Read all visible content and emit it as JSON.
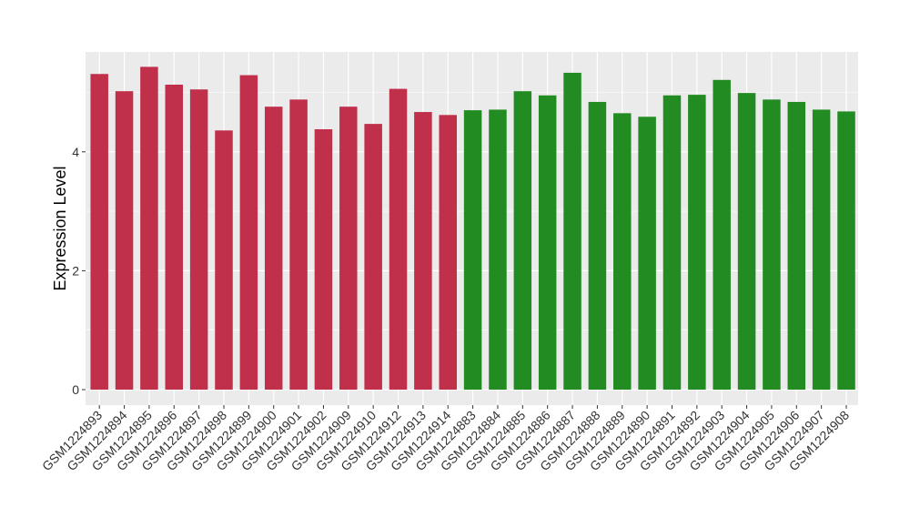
{
  "chart_data": {
    "type": "bar",
    "title": "",
    "xlabel": "",
    "ylabel": "Expression Level",
    "ylim": [
      0,
      5.6
    ],
    "yticks": [
      0,
      2,
      4
    ],
    "grid": true,
    "legend": "none",
    "categories": [
      "GSM1224893",
      "GSM1224894",
      "GSM1224895",
      "GSM1224896",
      "GSM1224897",
      "GSM1224898",
      "GSM1224899",
      "GSM1224900",
      "GSM1224901",
      "GSM1224902",
      "GSM1224909",
      "GSM1224910",
      "GSM1224912",
      "GSM1224913",
      "GSM1224914",
      "GSM1224883",
      "GSM1224884",
      "GSM1224885",
      "GSM1224886",
      "GSM1224887",
      "GSM1224888",
      "GSM1224889",
      "GSM1224890",
      "GSM1224891",
      "GSM1224892",
      "GSM1224903",
      "GSM1224904",
      "GSM1224905",
      "GSM1224906",
      "GSM1224907",
      "GSM1224908"
    ],
    "values": [
      5.31,
      5.02,
      5.43,
      5.13,
      5.05,
      4.36,
      5.29,
      4.76,
      4.88,
      4.38,
      4.76,
      4.47,
      5.06,
      4.67,
      4.62,
      4.7,
      4.71,
      5.02,
      4.95,
      5.33,
      4.84,
      4.65,
      4.59,
      4.95,
      4.96,
      5.21,
      4.99,
      4.88,
      4.84,
      4.71,
      4.68
    ],
    "groups": [
      0,
      0,
      0,
      0,
      0,
      0,
      0,
      0,
      0,
      0,
      0,
      0,
      0,
      0,
      0,
      1,
      1,
      1,
      1,
      1,
      1,
      1,
      1,
      1,
      1,
      1,
      1,
      1,
      1,
      1,
      1
    ],
    "colors": [
      "#C0304A",
      "#228B22"
    ],
    "panel_background": "#EBEBEB",
    "grid_color": "#FFFFFF"
  }
}
